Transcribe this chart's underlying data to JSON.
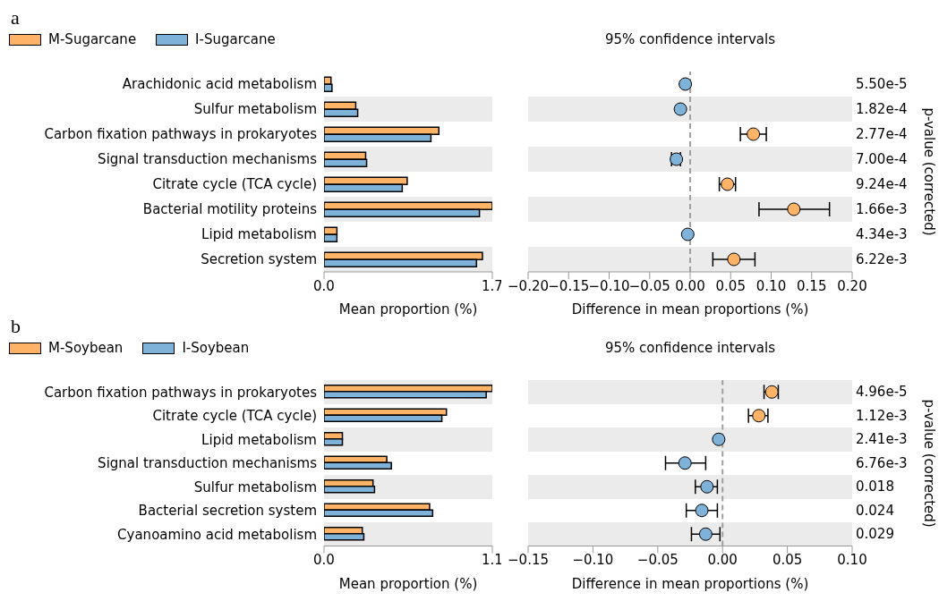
{
  "chart_data": [
    {
      "type": "bar",
      "orientation": "horizontal",
      "title": "a",
      "xlabel": "Mean proportion (%)",
      "legend": "top left",
      "grid": false,
      "categories": [
        "Arachidonic acid metabolism",
        "Sulfur metabolism",
        "Carbon fixation pathways in prokaryotes",
        "Signal transduction mechanisms",
        "Citrate cycle (TCA cycle)",
        "Bacterial motility proteins",
        "Lipid metabolism",
        "Secretion system"
      ],
      "series": [
        {
          "name": "M-Sugarcane",
          "color": "#ffb366",
          "values": [
            0.07,
            0.32,
            1.16,
            0.42,
            0.84,
            1.7,
            0.13,
            1.6
          ]
        },
        {
          "name": "I-Sugarcane",
          "color": "#7fb2d9",
          "values": [
            0.08,
            0.34,
            1.08,
            0.43,
            0.79,
            1.57,
            0.13,
            1.54
          ]
        }
      ],
      "xlim": [
        0,
        1.7
      ],
      "xticks": [
        {
          "value": 0,
          "label": "0.0"
        },
        1.7
      ]
    },
    {
      "type": "scatter",
      "orientation": "horizontal",
      "title": "95% confidence intervals",
      "xlabel": "Difference in mean proportions (%)",
      "y2label": "p-value (corrected)",
      "tick_labels": "x",
      "marker": "circle",
      "grid": false,
      "categories": [
        null,
        null,
        null,
        null,
        null,
        null,
        null,
        null
      ],
      "values": [
        -0.006,
        -0.012,
        0.078,
        -0.017,
        0.046,
        0.128,
        -0.003,
        0.054
      ],
      "colors": [
        "#7fb2d9",
        "#7fb2d9",
        "#ffb366",
        "#7fb2d9",
        "#ffb366",
        "#ffb366",
        "#7fb2d9",
        "#ffb366"
      ],
      "errors": [
        null,
        null,
        [
          0.062,
          0.094
        ],
        [
          -0.023,
          -0.012
        ],
        [
          0.036,
          0.056
        ],
        [
          0.085,
          0.172
        ],
        null,
        [
          0.028,
          0.08
        ]
      ],
      "annotations": [
        "5.50e-5",
        "1.82e-4",
        "2.77e-4",
        "7.00e-4",
        "9.24e-4",
        "1.66e-3",
        "4.34e-3",
        "6.22e-3"
      ],
      "xlim": [
        -0.2,
        0.2
      ],
      "xticks": [
        {
          "value": -0.2,
          "label": "−0.20"
        },
        {
          "value": -0.15,
          "label": "−0.15"
        },
        {
          "value": -0.1,
          "label": "−0.10"
        },
        {
          "value": -0.05,
          "label": "−0.05"
        },
        {
          "value": 0,
          "label": "0.00"
        },
        {
          "value": 0.05,
          "label": "0.05"
        },
        {
          "value": 0.1,
          "label": "0.10"
        },
        {
          "value": 0.15,
          "label": "0.15"
        },
        {
          "value": 0.2,
          "label": "0.20"
        }
      ],
      "ref_lines": [
        {
          "axis": "x",
          "value": 0,
          "color": "#a0a0a0",
          "line_style": "dashed"
        }
      ]
    },
    {
      "type": "bar",
      "orientation": "horizontal",
      "title": "b",
      "xlabel": "Mean proportion (%)",
      "legend": "top left",
      "grid": false,
      "categories": [
        "Carbon fixation pathways in prokaryotes",
        "Citrate cycle (TCA cycle)",
        "Lipid metabolism",
        "Signal transduction mechanisms",
        "Sulfur metabolism",
        "Bacterial secretion system",
        "Cyanoamino acid metabolism"
      ],
      "series": [
        {
          "name": "M-Soybean",
          "color": "#ffb366",
          "values": [
            1.1,
            0.8,
            0.12,
            0.41,
            0.32,
            0.69,
            0.25
          ]
        },
        {
          "name": "I-Soybean",
          "color": "#7fb2d9",
          "values": [
            1.06,
            0.77,
            0.12,
            0.44,
            0.33,
            0.71,
            0.26
          ]
        }
      ],
      "xlim": [
        0,
        1.1
      ],
      "xticks": [
        {
          "value": 0,
          "label": "0.0"
        },
        1.1
      ]
    },
    {
      "type": "scatter",
      "orientation": "horizontal",
      "title": "95% confidence intervals",
      "xlabel": "Difference in mean proportions (%)",
      "y2label": "p-value (corrected)",
      "tick_labels": "x",
      "marker": "circle",
      "grid": false,
      "categories": [
        null,
        null,
        null,
        null,
        null,
        null,
        null
      ],
      "values": [
        0.038,
        0.028,
        -0.003,
        -0.029,
        -0.012,
        -0.016,
        -0.013
      ],
      "colors": [
        "#ffb366",
        "#ffb366",
        "#7fb2d9",
        "#7fb2d9",
        "#7fb2d9",
        "#7fb2d9",
        "#7fb2d9"
      ],
      "errors": [
        [
          0.032,
          0.043
        ],
        [
          0.02,
          0.035
        ],
        null,
        [
          -0.044,
          -0.013
        ],
        [
          -0.021,
          -0.004
        ],
        [
          -0.028,
          -0.004
        ],
        [
          -0.024,
          -0.002
        ]
      ],
      "annotations": [
        "4.96e-5",
        "1.12e-3",
        "2.41e-3",
        "6.76e-3",
        "0.018",
        "0.024",
        "0.029"
      ],
      "xlim": [
        -0.15,
        0.1
      ],
      "xticks": [
        {
          "value": -0.15,
          "label": "−0.15"
        },
        {
          "value": -0.1,
          "label": "−0.10"
        },
        {
          "value": -0.05,
          "label": "−0.05"
        },
        {
          "value": 0,
          "label": "0.00"
        },
        {
          "value": 0.05,
          "label": "0.05"
        },
        {
          "value": 0.1,
          "label": "0.10"
        }
      ],
      "ref_lines": [
        {
          "axis": "x",
          "value": 0,
          "color": "#a0a0a0",
          "line_style": "dashed"
        }
      ]
    }
  ]
}
